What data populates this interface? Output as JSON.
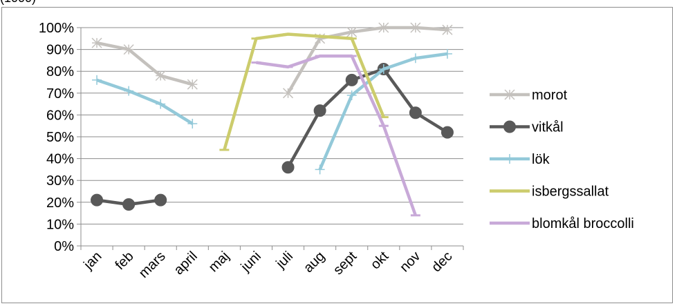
{
  "top_fragment": "(1000)",
  "chart_data": {
    "type": "line",
    "title": "",
    "xlabel": "",
    "ylabel": "",
    "categories": [
      "jan",
      "feb",
      "mars",
      "april",
      "maj",
      "juni",
      "juli",
      "aug",
      "sept",
      "okt",
      "nov",
      "dec"
    ],
    "ylim": [
      0,
      100
    ],
    "y_ticks": [
      "0%",
      "10%",
      "20%",
      "30%",
      "40%",
      "50%",
      "60%",
      "70%",
      "80%",
      "90%",
      "100%"
    ],
    "grid": true,
    "legend_position": "right",
    "series": [
      {
        "name": "morot",
        "color": "#c4c1bd",
        "marker": "star",
        "values": [
          93,
          90,
          78,
          74,
          null,
          null,
          70,
          95,
          98,
          100,
          100,
          99
        ]
      },
      {
        "name": "vitkål",
        "color": "#595959",
        "marker": "circle",
        "values": [
          21,
          19,
          21,
          null,
          null,
          null,
          36,
          62,
          76,
          81,
          61,
          52
        ]
      },
      {
        "name": "lök",
        "color": "#93c9d9",
        "marker": "plus",
        "values": [
          76,
          71,
          65,
          56,
          null,
          null,
          null,
          35,
          69,
          81,
          86,
          88
        ]
      },
      {
        "name": "isbergssallat",
        "color": "#cccc6c",
        "marker": "dash",
        "values": [
          null,
          null,
          null,
          null,
          44,
          95,
          97,
          96,
          95,
          59,
          null,
          null
        ]
      },
      {
        "name": "blomkål broccolli",
        "color": "#c8a9d8",
        "marker": "dash",
        "values": [
          null,
          null,
          null,
          null,
          null,
          84,
          82,
          87,
          87,
          55,
          14,
          null
        ]
      }
    ]
  }
}
